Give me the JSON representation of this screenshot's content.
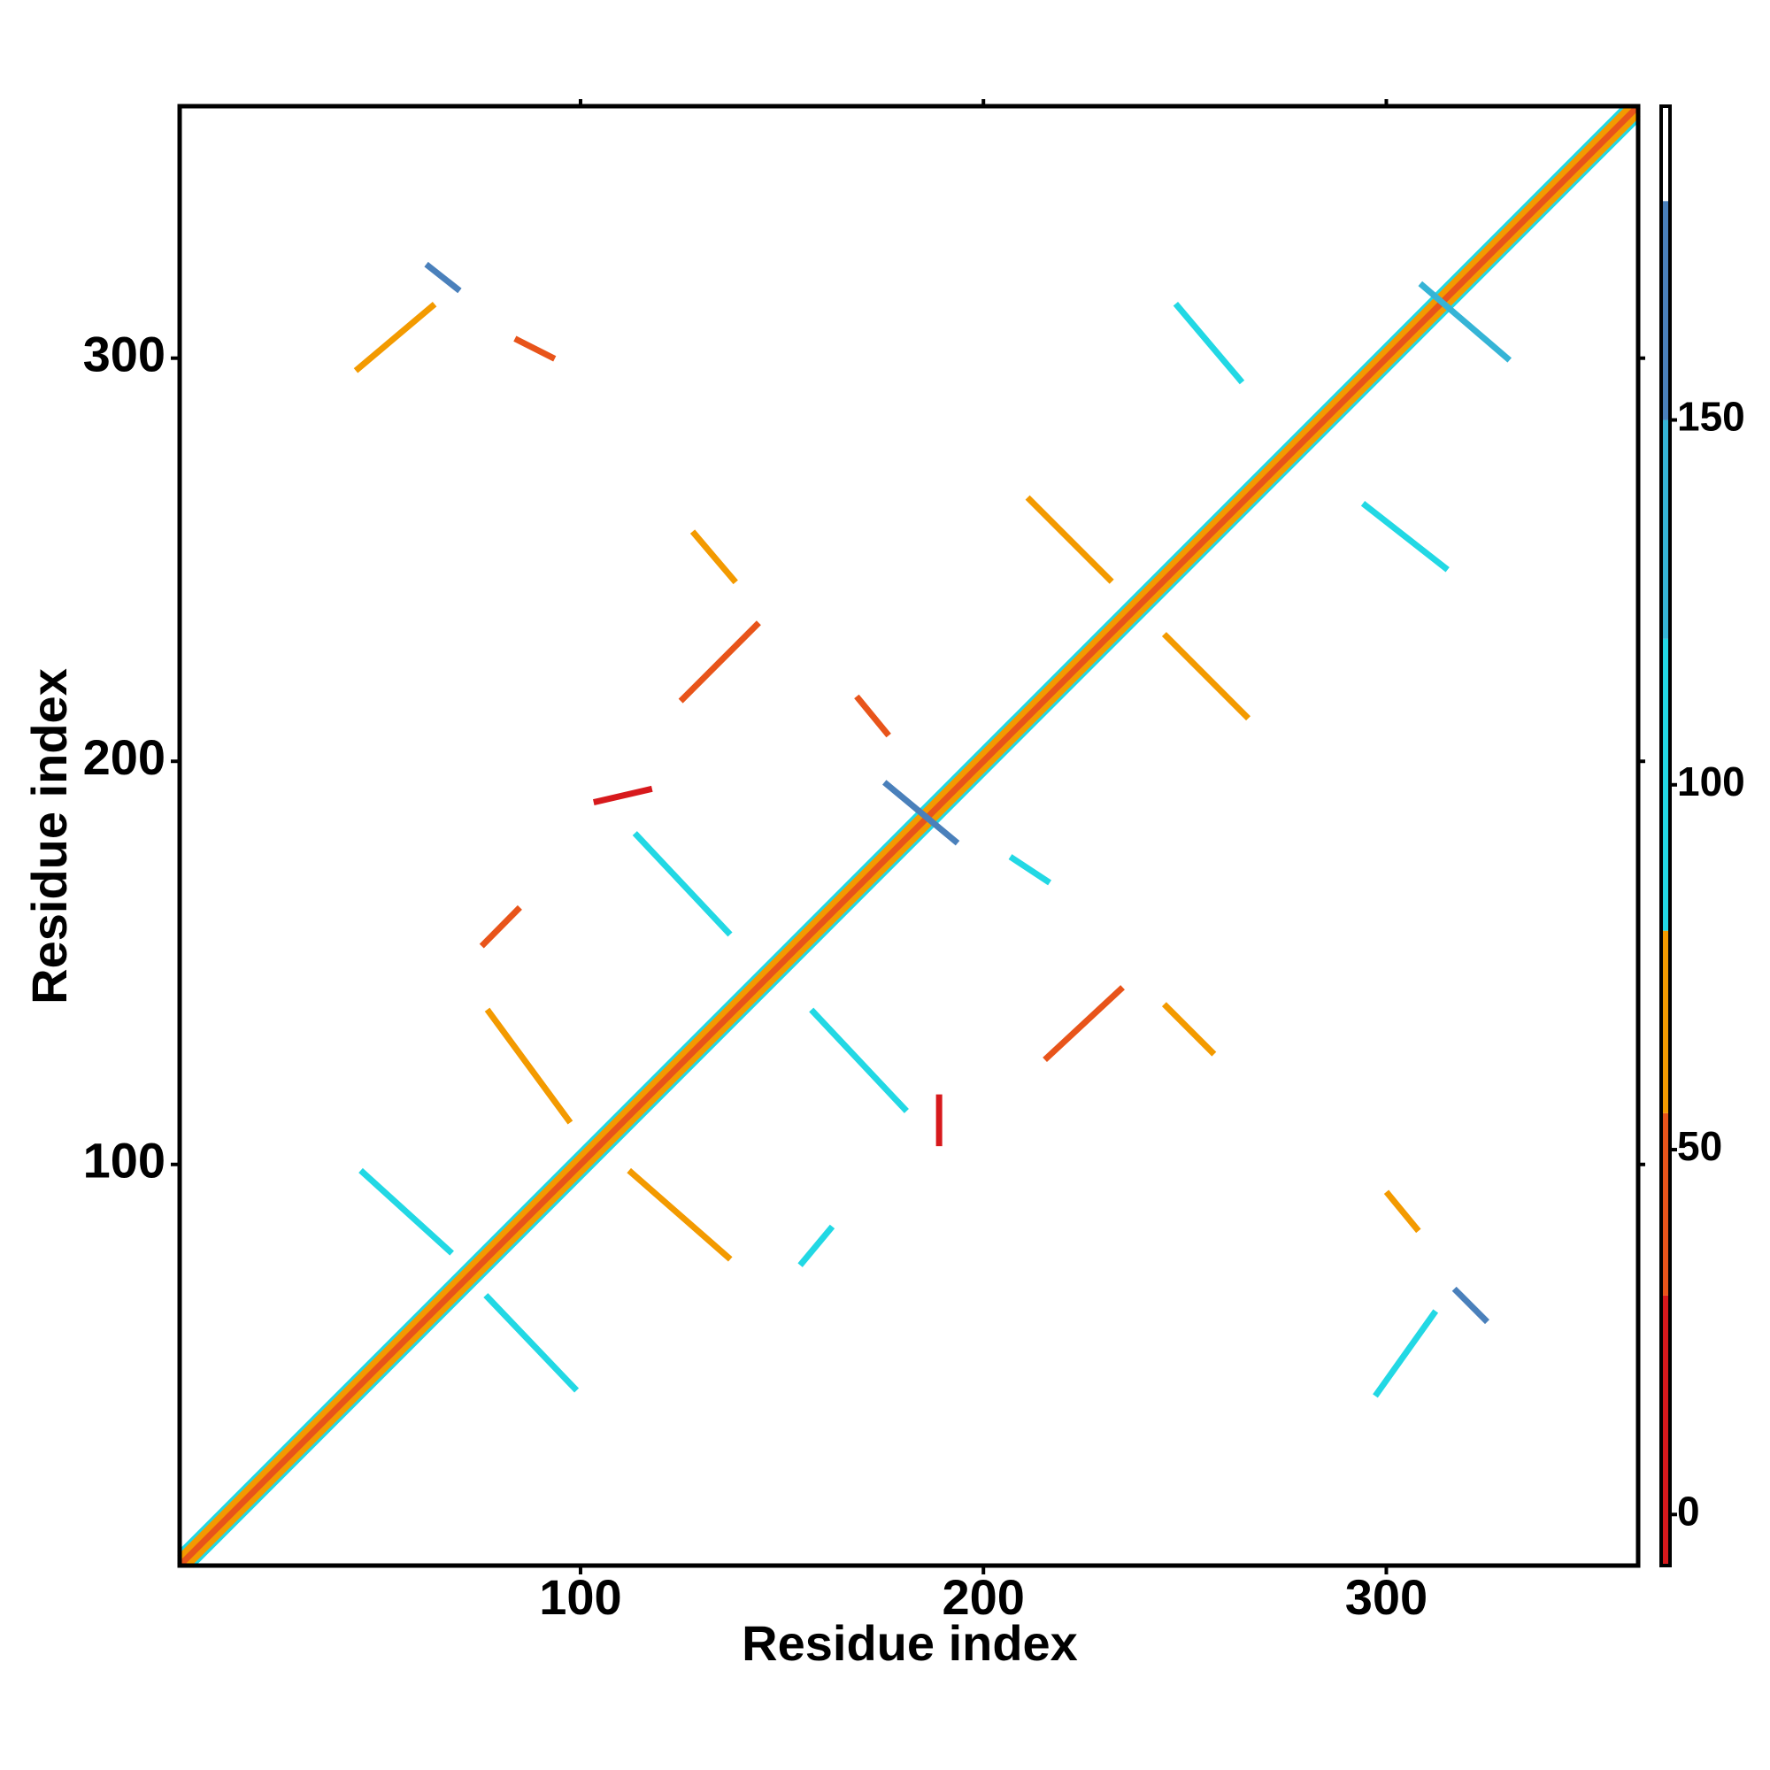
{
  "chart_data": {
    "type": "contact-map",
    "x_label": "Residue index",
    "y_label": "Residue index",
    "xlim": [
      0.5,
      362.5
    ],
    "ylim": [
      0.5,
      362.5
    ],
    "xticks": [
      100,
      200,
      300
    ],
    "yticks": [
      100,
      200,
      300
    ],
    "colorbar": {
      "bins": [
        -7,
        30,
        55,
        80,
        120,
        150,
        180,
        193
      ],
      "colors": [
        "#d7191c",
        "#e8541a",
        "#f39a00",
        "#22d8e4",
        "#35b4d6",
        "#4a80bb",
        "#ffffff"
      ],
      "lim": [
        -7,
        193
      ],
      "ticks": [
        0,
        50,
        100,
        150
      ]
    },
    "segments": [
      {
        "x": [
          1,
          359
        ],
        "y": [
          4,
          362
        ],
        "value": 95
      },
      {
        "x": [
          4,
          362
        ],
        "y": [
          1,
          359
        ],
        "value": 95
      },
      {
        "x": [
          1,
          360
        ],
        "y": [
          3,
          362
        ],
        "value": 60
      },
      {
        "x": [
          3,
          362
        ],
        "y": [
          1,
          360
        ],
        "value": 60
      },
      {
        "x": [
          1,
          362
        ],
        "y": [
          1,
          362
        ],
        "value": 40
      },
      {
        "x": [
          46,
          67.5
        ],
        "y": [
          98,
          78.5
        ],
        "value": 100
      },
      {
        "x": [
          77,
          98.5
        ],
        "y": [
          67,
          44.5
        ],
        "value": 95
      },
      {
        "x": [
          112.6,
          136.6
        ],
        "y": [
          98,
          77
        ],
        "value": 55
      },
      {
        "x": [
          77.3,
          97
        ],
        "y": [
          137.8,
          111
        ],
        "value": 60
      },
      {
        "x": [
          155,
          162
        ],
        "y": [
          75.6,
          84
        ],
        "value": 90
      },
      {
        "x": [
          157.8,
          180.4
        ],
        "y": [
          137.8,
          113.8
        ],
        "value": 105
      },
      {
        "x": [
          189,
          189
        ],
        "y": [
          105.3,
          116.6
        ],
        "value": 20
      },
      {
        "x": [
          215.8,
          234
        ],
        "y": [
          126.5,
          143.4
        ],
        "value": 40
      },
      {
        "x": [
          245.4,
          256.7
        ],
        "y": [
          139.2,
          127.9
        ],
        "value": 60
      },
      {
        "x": [
          114,
          136.6
        ],
        "y": [
          181.6,
          157.6
        ],
        "value": 110
      },
      {
        "x": [
          76,
          84.4
        ],
        "y": [
          154.7,
          163.2
        ],
        "value": 50
      },
      {
        "x": [
          104,
          117
        ],
        "y": [
          190,
          193
        ],
        "value": 20
      },
      {
        "x": [
          125.4,
          143.7
        ],
        "y": [
          215.5,
          233.8
        ],
        "value": 40
      },
      {
        "x": [
          128.3,
          138
        ],
        "y": [
          256.4,
          245
        ],
        "value": 55
      },
      {
        "x": [
          169,
          176
        ],
        "y": [
          215.5,
          207
        ],
        "value": 50
      },
      {
        "x": [
          176,
          193
        ],
        "y": [
          194.3,
          180.2
        ],
        "value": 160
      },
      {
        "x": [
          207.3,
          215.8
        ],
        "y": [
          175.9,
          170.3
        ],
        "value": 90
      },
      {
        "x": [
          211.5,
          231.3
        ],
        "y": [
          264.9,
          245.1
        ],
        "value": 55
      },
      {
        "x": [
          245.4,
          265.2
        ],
        "y": [
          231,
          211.2
        ],
        "value": 60
      },
      {
        "x": [
          248.2,
          263.7
        ],
        "y": [
          312.9,
          294.6
        ],
        "value": 95
      },
      {
        "x": [
          294.8,
          314.6
        ],
        "y": [
          263.5,
          248
        ],
        "value": 100
      },
      {
        "x": [
          297.7,
          311.8
        ],
        "y": [
          43.2,
          63
        ],
        "value": 80
      },
      {
        "x": [
          317.4,
          324.5
        ],
        "y": [
          68.6,
          61.5
        ],
        "value": 160
      },
      {
        "x": [
          300.5,
          307.5
        ],
        "y": [
          92.6,
          84.1
        ],
        "value": 60
      },
      {
        "x": [
          44.8,
          63.2
        ],
        "y": [
          297.4,
          312.9
        ],
        "value": 70
      },
      {
        "x": [
          62.3,
          69.4
        ],
        "y": [
          322.8,
          317.2
        ],
        "value": 150
      },
      {
        "x": [
          84.4,
          92.9
        ],
        "y": [
          304.5,
          300.2
        ],
        "value": 50
      },
      {
        "x": [
          309,
          330
        ],
        "y": [
          318,
          300
        ],
        "value": 140
      }
    ]
  }
}
